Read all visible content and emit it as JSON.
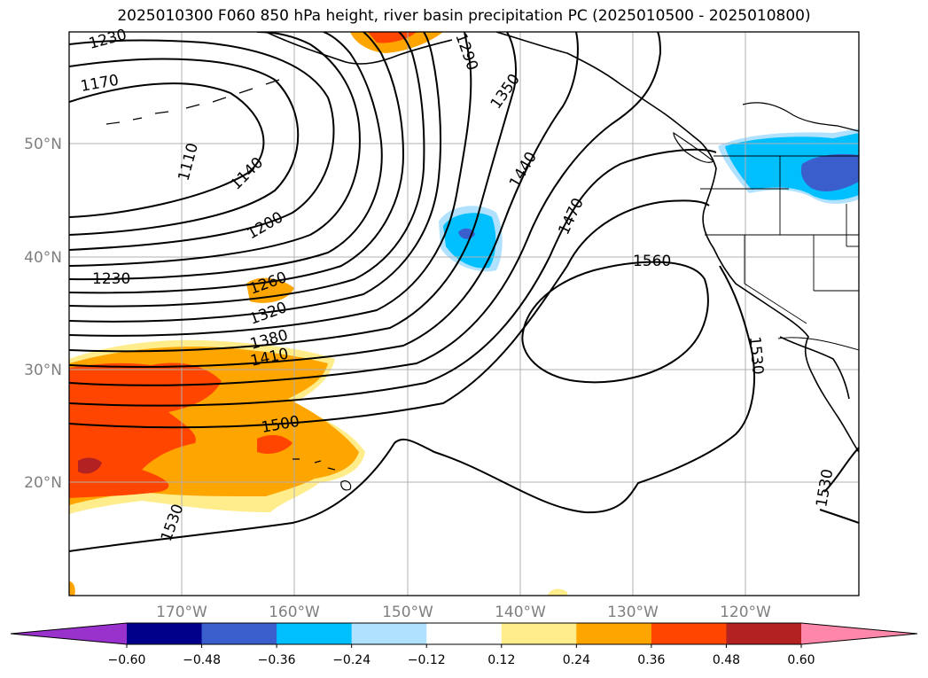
{
  "title": "2025010300 F060 850 hPa height, river basin precipitation PC (2025010500 - 2025010800)",
  "latitude_labels": [
    "50°N",
    "40°N",
    "30°N",
    "20°N"
  ],
  "longitude_labels": [
    "170°W",
    "160°W",
    "150°W",
    "140°W",
    "130°W",
    "120°W"
  ],
  "contour_labels": [
    "1230",
    "1170",
    "1110",
    "1140",
    "1200",
    "1230",
    "1260",
    "1320",
    "1380",
    "1410",
    "1500",
    "1530",
    "1290",
    "1350",
    "1440",
    "1470",
    "1560",
    "1530",
    "1530"
  ],
  "colorbar": {
    "tick_labels": [
      "−0.60",
      "−0.48",
      "−0.36",
      "−0.24",
      "−0.12",
      "0.12",
      "0.24",
      "0.36",
      "0.48",
      "0.60"
    ],
    "colors": [
      "#9932cc",
      "#00008b",
      "#3a5fcd",
      "#00bfff",
      "#b0e2ff",
      "#ffffff",
      "#ffec8b",
      "#ffa500",
      "#ff4500",
      "#b22222",
      "#ff88aa"
    ],
    "extend": "both"
  },
  "colors": {
    "contour": "#000000",
    "gridline": "#b0b0b0",
    "coastline": "#000000"
  }
}
